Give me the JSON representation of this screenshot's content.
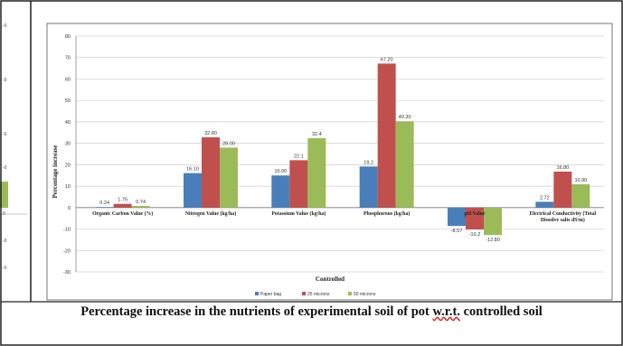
{
  "caption": {
    "before": "Percentage increase in the nutrients of experimental soil of pot ",
    "wrt": "w.r.t.",
    "after": " controlled soil"
  },
  "left_fragment": {
    "labels": [
      "-0",
      "-0",
      "-0",
      "-0",
      "0",
      "-0",
      "-0"
    ]
  },
  "chart_data": {
    "type": "bar",
    "ylabel": "Percentage increase",
    "xlabel": "Controlled",
    "ylim": [
      -30,
      80
    ],
    "yticks": [
      -30,
      -20,
      -10,
      0,
      10,
      20,
      30,
      40,
      50,
      60,
      70,
      80
    ],
    "grid": true,
    "legend_position": "bottom",
    "categories": [
      "Organic Carbon Value (%)",
      "Nitrogen Value (kg/ha)",
      "Potassium Value (kg/ha)",
      "Phosphorous (kg/ha)",
      "pH Value",
      "Electrical Conductivity (Total Dissolve salts dS/m)"
    ],
    "series": [
      {
        "name": "Paper bag",
        "color": "#4a7ebb",
        "values": [
          0.24,
          16.1,
          15.0,
          19.2,
          -8.57,
          2.72
        ],
        "labels": [
          "0.24",
          "16.10",
          "15.00",
          "19.2",
          "-8.57",
          "2.72"
        ]
      },
      {
        "name": "25 microns",
        "color": "#c0504d",
        "values": [
          1.75,
          32.8,
          22.1,
          67.2,
          -10.2,
          16.8
        ],
        "labels": [
          "1.75",
          "32.80",
          "22.1",
          "67.20",
          "-10.2",
          "16.80"
        ]
      },
      {
        "name": "50 microns",
        "color": "#9bbb59",
        "values": [
          0.74,
          28.0,
          32.4,
          40.3,
          -12.8,
          10.9
        ],
        "labels": [
          "0.74",
          "28.00",
          "32.4",
          "40.30",
          "-12.80",
          "10.90"
        ]
      }
    ]
  }
}
